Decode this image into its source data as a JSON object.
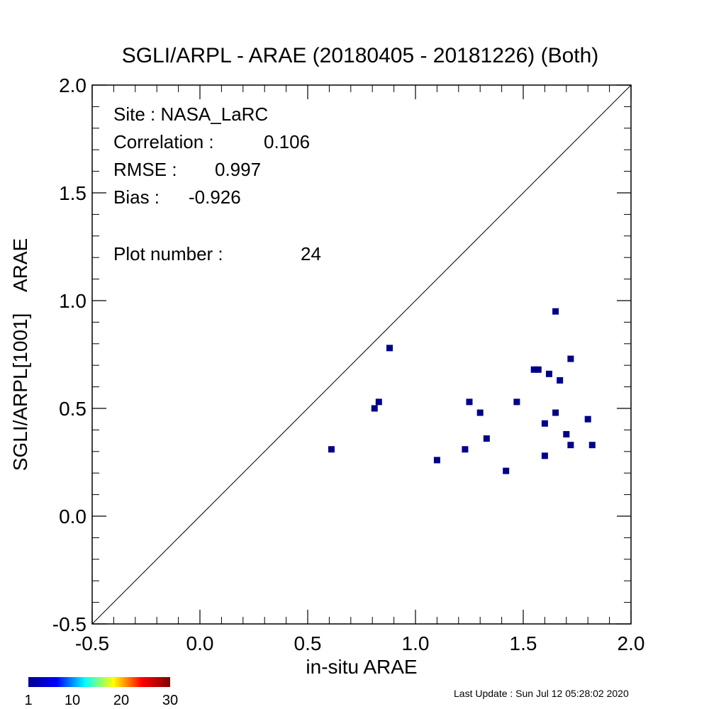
{
  "chart_data": {
    "type": "scatter",
    "title": "SGLI/ARPL - ARAE (20180405 - 20181226) (Both)",
    "xlabel": "in-situ ARAE",
    "ylabel": "SGLI/ARPL[1001]    ARAE",
    "xlim": [
      -0.5,
      2.0
    ],
    "ylim": [
      -0.5,
      2.0
    ],
    "x_ticks": [
      -0.5,
      0.0,
      0.5,
      1.0,
      1.5,
      2.0
    ],
    "y_ticks": [
      -0.5,
      0.0,
      0.5,
      1.0,
      1.5,
      2.0
    ],
    "x_tick_labels": [
      "-0.5",
      "0.0",
      "0.5",
      "1.0",
      "1.5",
      "2.0"
    ],
    "y_tick_labels": [
      "-0.5",
      "0.0",
      "0.5",
      "1.0",
      "1.5",
      "2.0"
    ],
    "reference_line": "1:1",
    "point_color": "#00008b",
    "points": [
      {
        "x": 0.61,
        "y": 0.31
      },
      {
        "x": 0.81,
        "y": 0.5
      },
      {
        "x": 0.83,
        "y": 0.53
      },
      {
        "x": 0.88,
        "y": 0.78
      },
      {
        "x": 1.1,
        "y": 0.26
      },
      {
        "x": 1.23,
        "y": 0.31
      },
      {
        "x": 1.25,
        "y": 0.53
      },
      {
        "x": 1.3,
        "y": 0.48
      },
      {
        "x": 1.33,
        "y": 0.36
      },
      {
        "x": 1.42,
        "y": 0.21
      },
      {
        "x": 1.47,
        "y": 0.53
      },
      {
        "x": 1.55,
        "y": 0.68
      },
      {
        "x": 1.57,
        "y": 0.68
      },
      {
        "x": 1.6,
        "y": 0.43
      },
      {
        "x": 1.6,
        "y": 0.28
      },
      {
        "x": 1.62,
        "y": 0.66
      },
      {
        "x": 1.65,
        "y": 0.95
      },
      {
        "x": 1.65,
        "y": 0.48
      },
      {
        "x": 1.67,
        "y": 0.63
      },
      {
        "x": 1.7,
        "y": 0.38
      },
      {
        "x": 1.72,
        "y": 0.73
      },
      {
        "x": 1.72,
        "y": 0.33
      },
      {
        "x": 1.8,
        "y": 0.45
      },
      {
        "x": 1.82,
        "y": 0.33
      }
    ],
    "stats": {
      "site": "Site : NASA_LaRC",
      "correlation_label": "Correlation :",
      "correlation_value": "0.106",
      "rmse_label": "RMSE :",
      "rmse_value": "0.997",
      "bias_label": "Bias :",
      "bias_value": "-0.926",
      "plot_number_label": "Plot number :",
      "plot_number_value": "24"
    },
    "colorbar": {
      "colors": [
        "#00008f",
        "#0000ff",
        "#00ffff",
        "#ffff00",
        "#ff0000",
        "#800000"
      ],
      "tick_labels": [
        "1",
        "10",
        "20",
        "30"
      ],
      "tick_values": [
        1,
        10,
        20,
        30
      ],
      "range": [
        1,
        30
      ]
    },
    "last_update": "Last Update : Sun Jul 12 05:28:02 2020"
  }
}
